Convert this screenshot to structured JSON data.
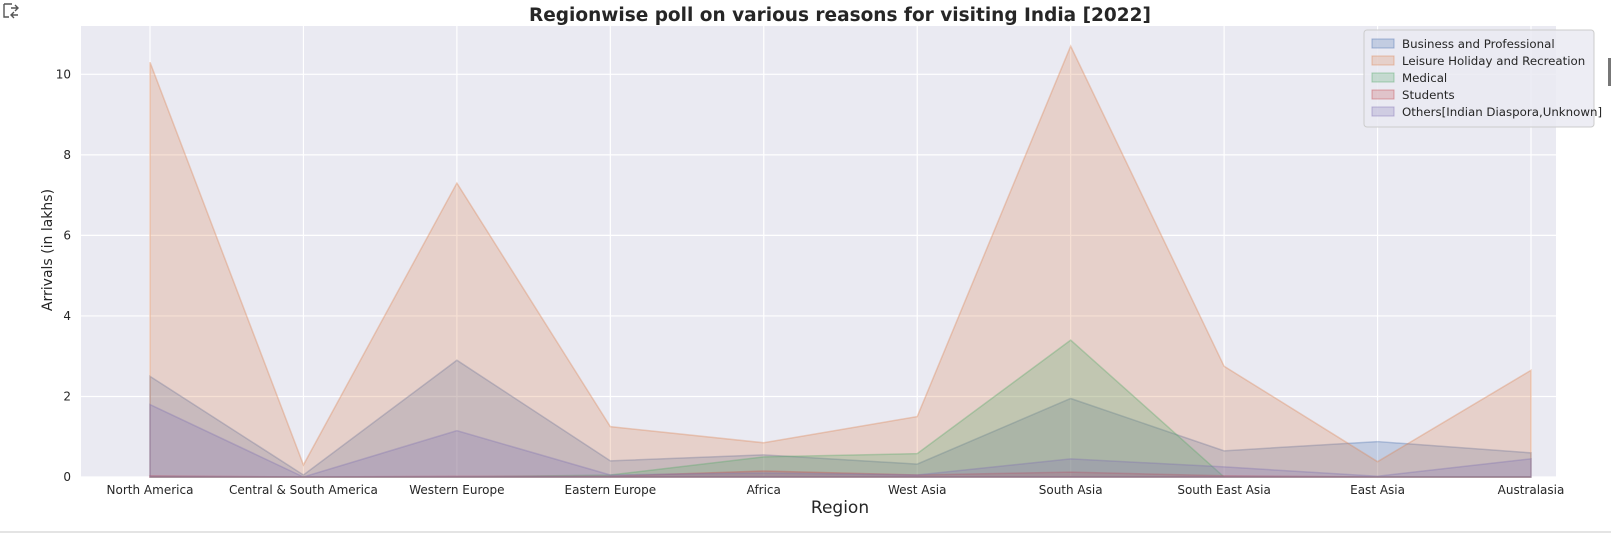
{
  "toolbar": {
    "icon": "output-toggle-icon"
  },
  "chart_data": {
    "type": "area",
    "title": "Regionwise poll on various reasons for visiting India [2022]",
    "xlabel": "Region",
    "ylabel": "Arrivals (in lakhs)",
    "categories": [
      "North America",
      "Central & South America",
      "Western Europe",
      "Eastern Europe",
      "Africa",
      "West Asia",
      "South Asia",
      "South East Asia",
      "East Asia",
      "Australasia"
    ],
    "ylim": [
      0,
      11.2
    ],
    "yticks": [
      0,
      2,
      4,
      6,
      8,
      10
    ],
    "grid": true,
    "stacked": false,
    "legend_position": "top-right",
    "series": [
      {
        "name": "Business and Professional",
        "color": "#4c72b0",
        "values": [
          2.5,
          0.05,
          2.9,
          0.4,
          0.55,
          0.32,
          1.95,
          0.65,
          0.88,
          0.6
        ]
      },
      {
        "name": "Leisure Holiday and Recreation",
        "color": "#dd8452",
        "values": [
          10.3,
          0.3,
          7.3,
          1.25,
          0.85,
          1.5,
          10.7,
          2.75,
          0.38,
          2.65
        ]
      },
      {
        "name": "Medical",
        "color": "#55a868",
        "values": [
          0.0,
          0.0,
          0.0,
          0.05,
          0.5,
          0.58,
          3.4,
          0.0,
          0.0,
          0.0
        ]
      },
      {
        "name": "Students",
        "color": "#c44e52",
        "values": [
          0.03,
          0.0,
          0.02,
          0.02,
          0.15,
          0.05,
          0.12,
          0.03,
          0.0,
          0.0
        ]
      },
      {
        "name": "Others[Indian Diaspora,Unknown]",
        "color": "#8172b3",
        "values": [
          1.8,
          0.0,
          1.15,
          0.05,
          0.1,
          0.05,
          0.45,
          0.25,
          0.02,
          0.45
        ]
      }
    ]
  }
}
